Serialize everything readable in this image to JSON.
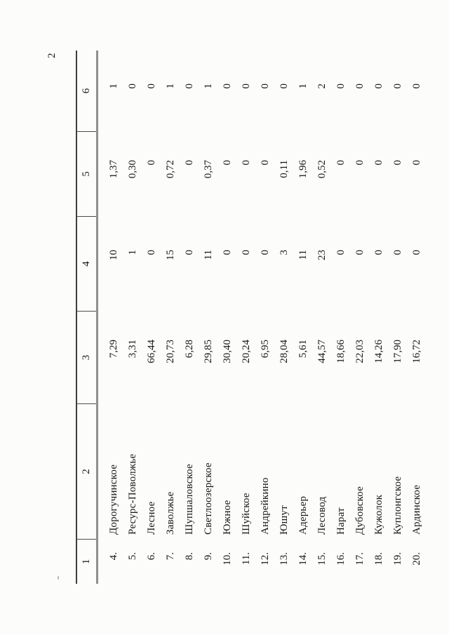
{
  "page": {
    "number": "2"
  },
  "table": {
    "header": [
      "1",
      "2",
      "3",
      "4",
      "5",
      "6"
    ],
    "rows": [
      {
        "num": "4.",
        "name": "Дорогучинское",
        "c3": "7,29",
        "c4": "10",
        "c5": "1,37",
        "c6": "1"
      },
      {
        "num": "5.",
        "name": "Ресурс-Поволжье",
        "c3": "3,31",
        "c4": "1",
        "c5": "0,30",
        "c6": "0"
      },
      {
        "num": "6.",
        "name": "Лесное",
        "c3": "66,44",
        "c4": "0",
        "c5": "0",
        "c6": "0"
      },
      {
        "num": "7.",
        "name": "Заволжье",
        "c3": "20,73",
        "c4": "15",
        "c5": "0,72",
        "c6": "1"
      },
      {
        "num": "8.",
        "name": "Шупшаловское",
        "c3": "6,28",
        "c4": "0",
        "c5": "0",
        "c6": "0"
      },
      {
        "num": "9.",
        "name": "Светлоозерское",
        "c3": "29,85",
        "c4": "11",
        "c5": "0,37",
        "c6": "1"
      },
      {
        "num": "10.",
        "name": "Южное",
        "c3": "30,40",
        "c4": "0",
        "c5": "0",
        "c6": "0"
      },
      {
        "num": "11.",
        "name": "Шуйское",
        "c3": "20,24",
        "c4": "0",
        "c5": "0",
        "c6": "0"
      },
      {
        "num": "12.",
        "name": "Андрейкино",
        "c3": "6,95",
        "c4": "0",
        "c5": "0",
        "c6": "0"
      },
      {
        "num": "13.",
        "name": "Юшут",
        "c3": "28,04",
        "c4": "3",
        "c5": "0,11",
        "c6": "0"
      },
      {
        "num": "14.",
        "name": "Адерьер",
        "c3": "5,61",
        "c4": "11",
        "c5": "1,96",
        "c6": "1"
      },
      {
        "num": "15.",
        "name": "Лесовод",
        "c3": "44,57",
        "c4": "23",
        "c5": "0,52",
        "c6": "2"
      },
      {
        "num": "16.",
        "name": "Нарат",
        "c3": "18,66",
        "c4": "0",
        "c5": "0",
        "c6": "0"
      },
      {
        "num": "17.",
        "name": "Дубовское",
        "c3": "22,03",
        "c4": "0",
        "c5": "0",
        "c6": "0"
      },
      {
        "num": "18.",
        "name": "Кужолок",
        "c3": "14,26",
        "c4": "0",
        "c5": "0",
        "c6": "0"
      },
      {
        "num": "19.",
        "name": "Куплонгское",
        "c3": "17,90",
        "c4": "0",
        "c5": "0",
        "c6": "0"
      },
      {
        "num": "20.",
        "name": "Ардинское",
        "c3": "16,72",
        "c4": "0",
        "c5": "0",
        "c6": "0"
      }
    ]
  }
}
